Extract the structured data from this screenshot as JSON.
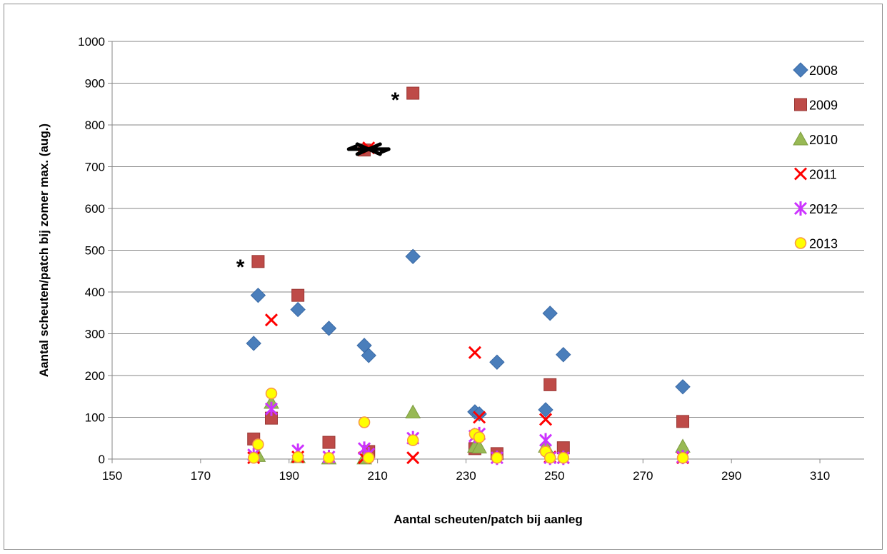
{
  "chart_data": {
    "type": "scatter",
    "title": "",
    "xlabel": "Aantal scheuten/patch bij aanleg",
    "ylabel": "Aantal scheuten/patch bij zomer max. (aug.)",
    "xlim": [
      150,
      320
    ],
    "ylim": [
      0,
      1000
    ],
    "x_ticks": [
      150,
      170,
      190,
      210,
      230,
      250,
      270,
      290,
      310
    ],
    "y_ticks": [
      0,
      100,
      200,
      300,
      400,
      500,
      600,
      700,
      800,
      900,
      1000
    ],
    "grid": "horizontal",
    "legend_position": "right",
    "series": [
      {
        "name": "2008",
        "marker": "diamond",
        "color": "#4a7ebb",
        "points": [
          [
            182,
            277
          ],
          [
            183,
            392
          ],
          [
            192,
            358
          ],
          [
            199,
            313
          ],
          [
            207,
            272
          ],
          [
            208,
            248
          ],
          [
            218,
            485
          ],
          [
            232,
            113
          ],
          [
            233,
            108
          ],
          [
            237,
            232
          ],
          [
            248,
            118
          ],
          [
            249,
            349
          ],
          [
            252,
            250
          ],
          [
            279,
            173
          ]
        ]
      },
      {
        "name": "2009",
        "marker": "square",
        "color": "#be4b48",
        "points": [
          [
            182,
            48
          ],
          [
            183,
            473
          ],
          [
            186,
            98
          ],
          [
            192,
            392
          ],
          [
            199,
            40
          ],
          [
            207,
            740
          ],
          [
            208,
            18
          ],
          [
            218,
            876
          ],
          [
            232,
            25
          ],
          [
            237,
            13
          ],
          [
            249,
            178
          ],
          [
            252,
            27
          ],
          [
            279,
            90
          ]
        ]
      },
      {
        "name": "2010",
        "marker": "triangle",
        "color": "#98b954",
        "points": [
          [
            183,
            8
          ],
          [
            186,
            135
          ],
          [
            192,
            5
          ],
          [
            199,
            2
          ],
          [
            207,
            2
          ],
          [
            218,
            112
          ],
          [
            232,
            30
          ],
          [
            233,
            28
          ],
          [
            248,
            30
          ],
          [
            279,
            30
          ]
        ]
      },
      {
        "name": "2011",
        "marker": "x",
        "color": "#ff0000",
        "points": [
          [
            182,
            3
          ],
          [
            186,
            333
          ],
          [
            192,
            5
          ],
          [
            207,
            3
          ],
          [
            208,
            745
          ],
          [
            218,
            3
          ],
          [
            232,
            255
          ],
          [
            233,
            100
          ],
          [
            248,
            95
          ],
          [
            249,
            5
          ],
          [
            252,
            3
          ],
          [
            279,
            3
          ]
        ]
      },
      {
        "name": "2012",
        "marker": "star",
        "color": "#cc33ff",
        "points": [
          [
            182,
            10
          ],
          [
            186,
            120
          ],
          [
            192,
            20
          ],
          [
            199,
            5
          ],
          [
            207,
            25
          ],
          [
            208,
            12
          ],
          [
            218,
            50
          ],
          [
            232,
            55
          ],
          [
            233,
            60
          ],
          [
            237,
            3
          ],
          [
            248,
            45
          ],
          [
            249,
            3
          ],
          [
            252,
            3
          ],
          [
            279,
            5
          ]
        ]
      },
      {
        "name": "2013",
        "marker": "circle",
        "color": "#ffff00",
        "points": [
          [
            182,
            3
          ],
          [
            183,
            35
          ],
          [
            186,
            157
          ],
          [
            192,
            5
          ],
          [
            199,
            3
          ],
          [
            207,
            88
          ],
          [
            208,
            3
          ],
          [
            218,
            45
          ],
          [
            232,
            60
          ],
          [
            233,
            52
          ],
          [
            237,
            3
          ],
          [
            248,
            18
          ],
          [
            249,
            3
          ],
          [
            252,
            3
          ],
          [
            279,
            3
          ]
        ]
      }
    ],
    "annotations": [
      {
        "text": "*",
        "x": 179,
        "y": 470
      },
      {
        "text": "*",
        "x": 214,
        "y": 870
      }
    ]
  }
}
